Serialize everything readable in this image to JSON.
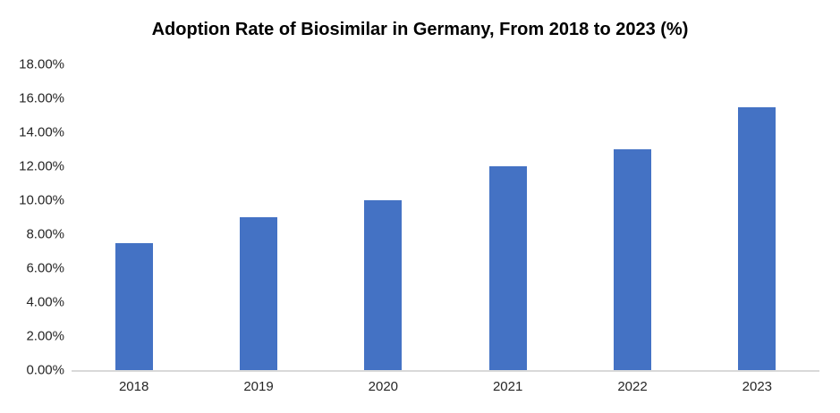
{
  "chart_data": {
    "type": "bar",
    "title": "Adoption Rate of Biosimilar in Germany, From 2018 to 2023 (%)",
    "categories": [
      "2018",
      "2019",
      "2020",
      "2021",
      "2022",
      "2023"
    ],
    "values": [
      7.5,
      9.0,
      10.0,
      12.0,
      13.0,
      15.5
    ],
    "unit": "%",
    "xlabel": "",
    "ylabel": "",
    "ylim": [
      0,
      18
    ],
    "ytick_step": 2,
    "ytick_labels": [
      "0.00%",
      "2.00%",
      "4.00%",
      "6.00%",
      "8.00%",
      "10.00%",
      "12.00%",
      "14.00%",
      "16.00%",
      "18.00%"
    ],
    "grid": false,
    "legend_position": "none",
    "colors": {
      "bar": "#4472C4",
      "axis_line": "#D9D9D9",
      "tick_text": "#262626",
      "title_text": "#000000"
    }
  }
}
